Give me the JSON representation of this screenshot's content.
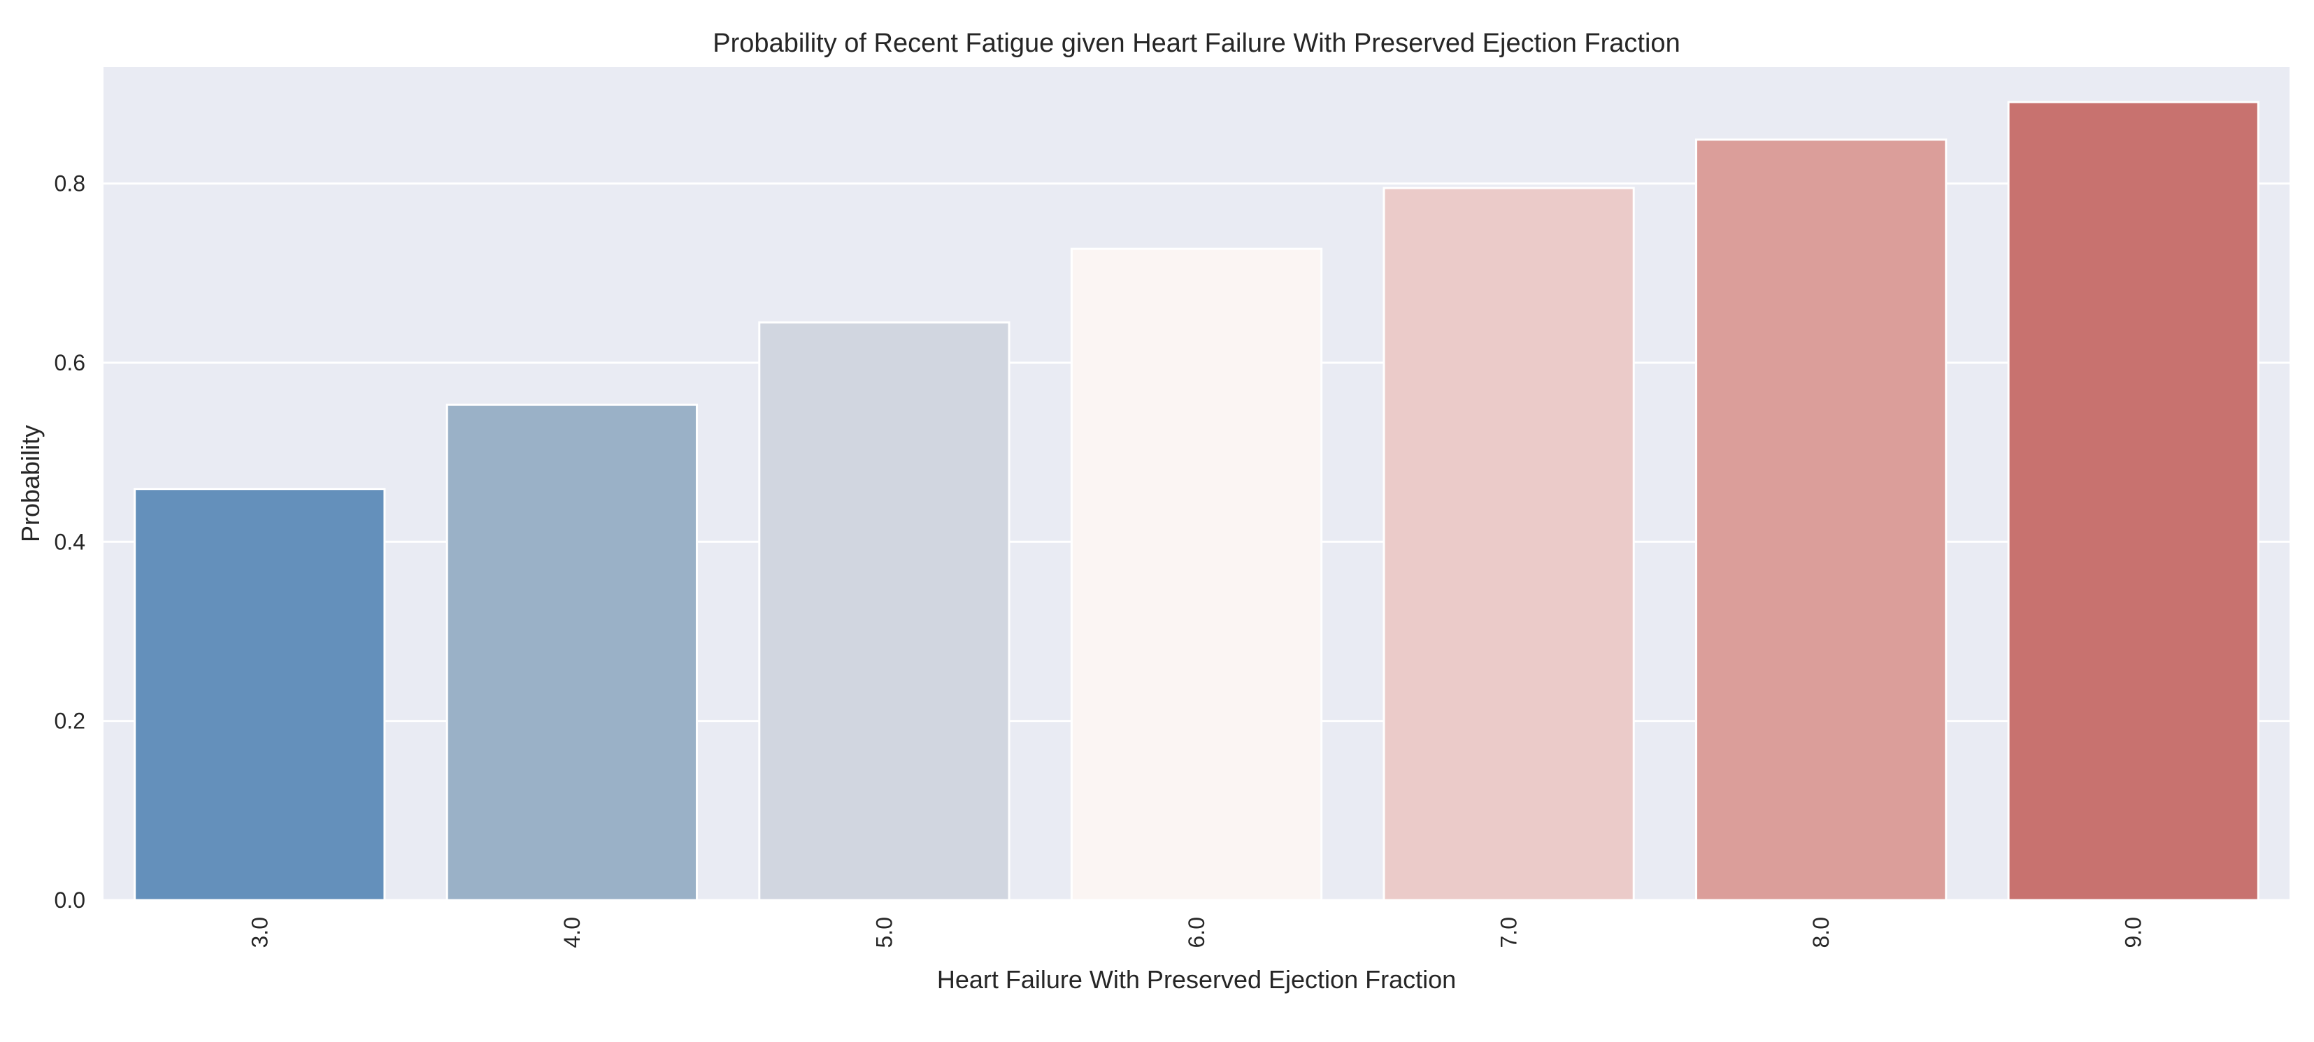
{
  "chart_data": {
    "type": "bar",
    "title": "Probability of Recent Fatigue given Heart Failure With Preserved Ejection Fraction",
    "xlabel": "Heart Failure With Preserved Ejection Fraction",
    "ylabel": "Probability",
    "categories": [
      "3.0",
      "4.0",
      "5.0",
      "6.0",
      "7.0",
      "8.0",
      "9.0"
    ],
    "values": [
      0.459,
      0.553,
      0.645,
      0.727,
      0.795,
      0.849,
      0.891
    ],
    "colors": [
      "#6490bb",
      "#9ab1c7",
      "#d1d6e0",
      "#fbf5f3",
      "#ebcbc9",
      "#db9e9a",
      "#c8726f"
    ],
    "ylim": [
      0,
      0.93
    ],
    "yticks": [
      "0.0",
      "0.2",
      "0.4",
      "0.6",
      "0.8"
    ],
    "ytick_values": [
      0,
      0.2,
      0.4,
      0.6,
      0.8
    ],
    "grid": true,
    "background": "#e9ebf3",
    "xtick_rotation": "vertical"
  }
}
